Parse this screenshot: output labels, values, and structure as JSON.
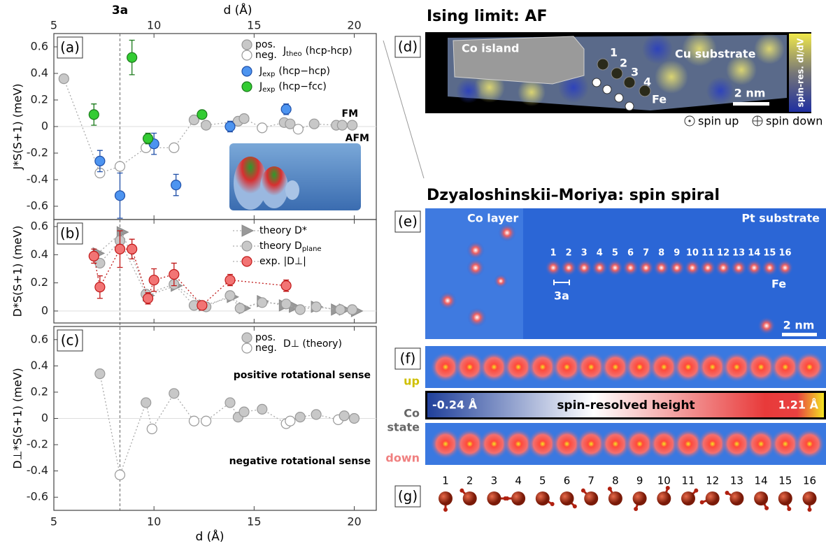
{
  "chart_data": [
    {
      "type": "scatter",
      "panel_label": "(a)",
      "y_label": "J*S(S+1) (meV)",
      "top_axis_label": "d (Å)",
      "marker_label": "3a",
      "marker_x": 8.3,
      "xlim": [
        5,
        21.1
      ],
      "xticks": [
        5,
        10,
        15,
        20
      ],
      "ylim": [
        -0.7,
        0.7
      ],
      "yticks": [
        -0.6,
        -0.4,
        -0.2,
        0,
        0.2,
        0.4,
        0.6
      ],
      "legend": "upper right",
      "annotations": [
        "FM",
        "AFM"
      ],
      "series": [
        {
          "name": "J",
          "name_sub": "theo",
          "name_rest": "(hcp-hcp)",
          "sign_labels": [
            "pos.",
            "neg."
          ],
          "color": "#c8c8c8",
          "edge_color": "#999999",
          "marker": "circle-sign",
          "line": "dotted",
          "x": [
            5.5,
            7.3,
            8.3,
            9.6,
            11.0,
            12.0,
            12.6,
            14.2,
            14.5,
            15.4,
            16.5,
            16.8,
            17.2,
            18.0,
            19.1,
            19.4,
            19.9
          ],
          "values": [
            0.36,
            -0.35,
            -0.3,
            -0.16,
            -0.16,
            0.05,
            0.01,
            0.04,
            0.06,
            -0.01,
            0.03,
            0.02,
            -0.02,
            0.02,
            0.01,
            0.01,
            0.01
          ]
        },
        {
          "name": "J",
          "name_sub": "exp",
          "name_rest": "(hcp−hcp)",
          "color": "#4d94f0",
          "edge_color": "#1f4fa8",
          "marker": "circle",
          "x": [
            7.3,
            8.3,
            10.0,
            11.1,
            13.8,
            16.6
          ],
          "values": [
            -0.26,
            -0.52,
            -0.13,
            -0.44,
            0.0,
            0.13
          ],
          "errors": [
            0.08,
            0.17,
            0.08,
            0.08,
            0.04,
            0.04
          ]
        },
        {
          "name": "J",
          "name_sub": "exp",
          "name_rest": "(hcp−fcc)",
          "color": "#33cc33",
          "edge_color": "#1a7a1a",
          "marker": "circle",
          "x": [
            7.0,
            8.9,
            9.7,
            12.4
          ],
          "values": [
            0.09,
            0.52,
            -0.09,
            0.09
          ],
          "errors": [
            0.08,
            0.13,
            0.04,
            0.03
          ]
        }
      ]
    },
    {
      "type": "scatter",
      "panel_label": "(b)",
      "y_label": "D*S(S+1) (meV)",
      "xlim": [
        5,
        21.1
      ],
      "xticks": [
        5,
        10,
        15,
        20
      ],
      "ylim": [
        -0.085,
        0.65
      ],
      "yticks": [
        0,
        0.2,
        0.4,
        0.6
      ],
      "legend": "upper right",
      "series": [
        {
          "name": "theory D*",
          "color": "#999999",
          "edge_color": "#888888",
          "marker": "triangle",
          "line": "dotted",
          "x": [
            7.2,
            8.4,
            9.7,
            11.1,
            12.5,
            13.9,
            14.5,
            15.4,
            16.5,
            17.0,
            18.1,
            19.1,
            19.5,
            20.1
          ],
          "values": [
            0.41,
            0.56,
            0.11,
            0.18,
            0.04,
            0.1,
            0.02,
            0.07,
            0.04,
            0.03,
            0.03,
            0.01,
            0.01,
            0.0
          ]
        },
        {
          "name": "theory D",
          "name_sub": "plane",
          "color": "#c8c8c8",
          "edge_color": "#999999",
          "marker": "circle",
          "line": "dotted",
          "x": [
            7.3,
            8.3,
            9.6,
            11.0,
            12.0,
            12.6,
            13.8,
            14.3,
            15.4,
            16.6,
            17.3,
            18.1,
            19.3,
            19.9
          ],
          "values": [
            0.34,
            0.5,
            0.12,
            0.19,
            0.04,
            0.03,
            0.11,
            0.02,
            0.06,
            0.05,
            0.01,
            0.03,
            0.01,
            0.01
          ]
        },
        {
          "name": "exp. |D⊥|",
          "color": "#f27474",
          "edge_color": "#c01818",
          "marker": "circle",
          "line": "dotted",
          "x": [
            7.0,
            7.3,
            8.3,
            8.9,
            9.7,
            10.0,
            11.0,
            12.4,
            13.8,
            16.6
          ],
          "values": [
            0.39,
            0.17,
            0.44,
            0.44,
            0.09,
            0.22,
            0.26,
            0.04,
            0.22,
            0.18
          ],
          "errors": [
            0.05,
            0.08,
            0.13,
            0.07,
            0.04,
            0.08,
            0.08,
            0.03,
            0.04,
            0.04
          ]
        }
      ]
    },
    {
      "type": "scatter",
      "panel_label": "(c)",
      "y_label": "D⊥*S(S+1) (meV)",
      "x_label": "d (Å)",
      "xlim": [
        5,
        21.1
      ],
      "xticks": [
        5,
        10,
        15,
        20
      ],
      "ylim": [
        -0.7,
        0.7
      ],
      "yticks": [
        -0.6,
        -0.4,
        -0.2,
        0,
        0.2,
        0.4,
        0.6
      ],
      "legend": "upper right",
      "annotations": [
        "positive rotational sense",
        "negative rotational sense"
      ],
      "series": [
        {
          "name": "D⊥ (theory)",
          "sign_labels": [
            "pos.",
            "neg."
          ],
          "color": "#c8c8c8",
          "edge_color": "#999999",
          "marker": "circle-sign",
          "line": "dotted",
          "x": [
            7.3,
            8.3,
            9.6,
            9.9,
            11.0,
            12.0,
            12.6,
            13.8,
            14.2,
            14.5,
            15.4,
            16.6,
            16.8,
            17.3,
            18.1,
            19.2,
            19.5,
            20.0
          ],
          "values": [
            0.34,
            -0.43,
            0.12,
            -0.08,
            0.19,
            -0.02,
            -0.02,
            0.12,
            0.01,
            0.05,
            0.07,
            -0.04,
            -0.02,
            0.01,
            0.03,
            -0.01,
            0.02,
            0.0
          ]
        }
      ]
    }
  ],
  "panels": {
    "d": {
      "label": "(d)",
      "title": "Ising limit: AF",
      "co_island": "Co island",
      "cu_substrate": "Cu substrate",
      "atoms": [
        "1",
        "2",
        "3",
        "4"
      ],
      "fe": "Fe",
      "scale": "2 nm",
      "colorbar": "spin-res. dI/dV",
      "spin_up": "spin up",
      "spin_down": "spin down"
    },
    "e": {
      "label": "(e)",
      "title": "Dzyaloshinskii–Moriya: spin spiral",
      "co_layer": "Co layer",
      "pt_substrate": "Pt substrate",
      "atoms": [
        1,
        2,
        3,
        4,
        5,
        6,
        7,
        8,
        9,
        10,
        11,
        12,
        13,
        14,
        15,
        16
      ],
      "fe": "Fe",
      "spacing": "3a",
      "scale": "2 nm"
    },
    "f": {
      "label": "(f)",
      "up": "up",
      "co": "Co",
      "state": "state",
      "down": "down",
      "min_label": "-0.24 Å",
      "bar_title": "spin-resolved height",
      "max_label": "1.21 Å"
    },
    "g": {
      "label": "(g)",
      "atoms": [
        1,
        2,
        3,
        4,
        5,
        6,
        7,
        8,
        9,
        10,
        11,
        12,
        13,
        14,
        15,
        16
      ]
    }
  }
}
